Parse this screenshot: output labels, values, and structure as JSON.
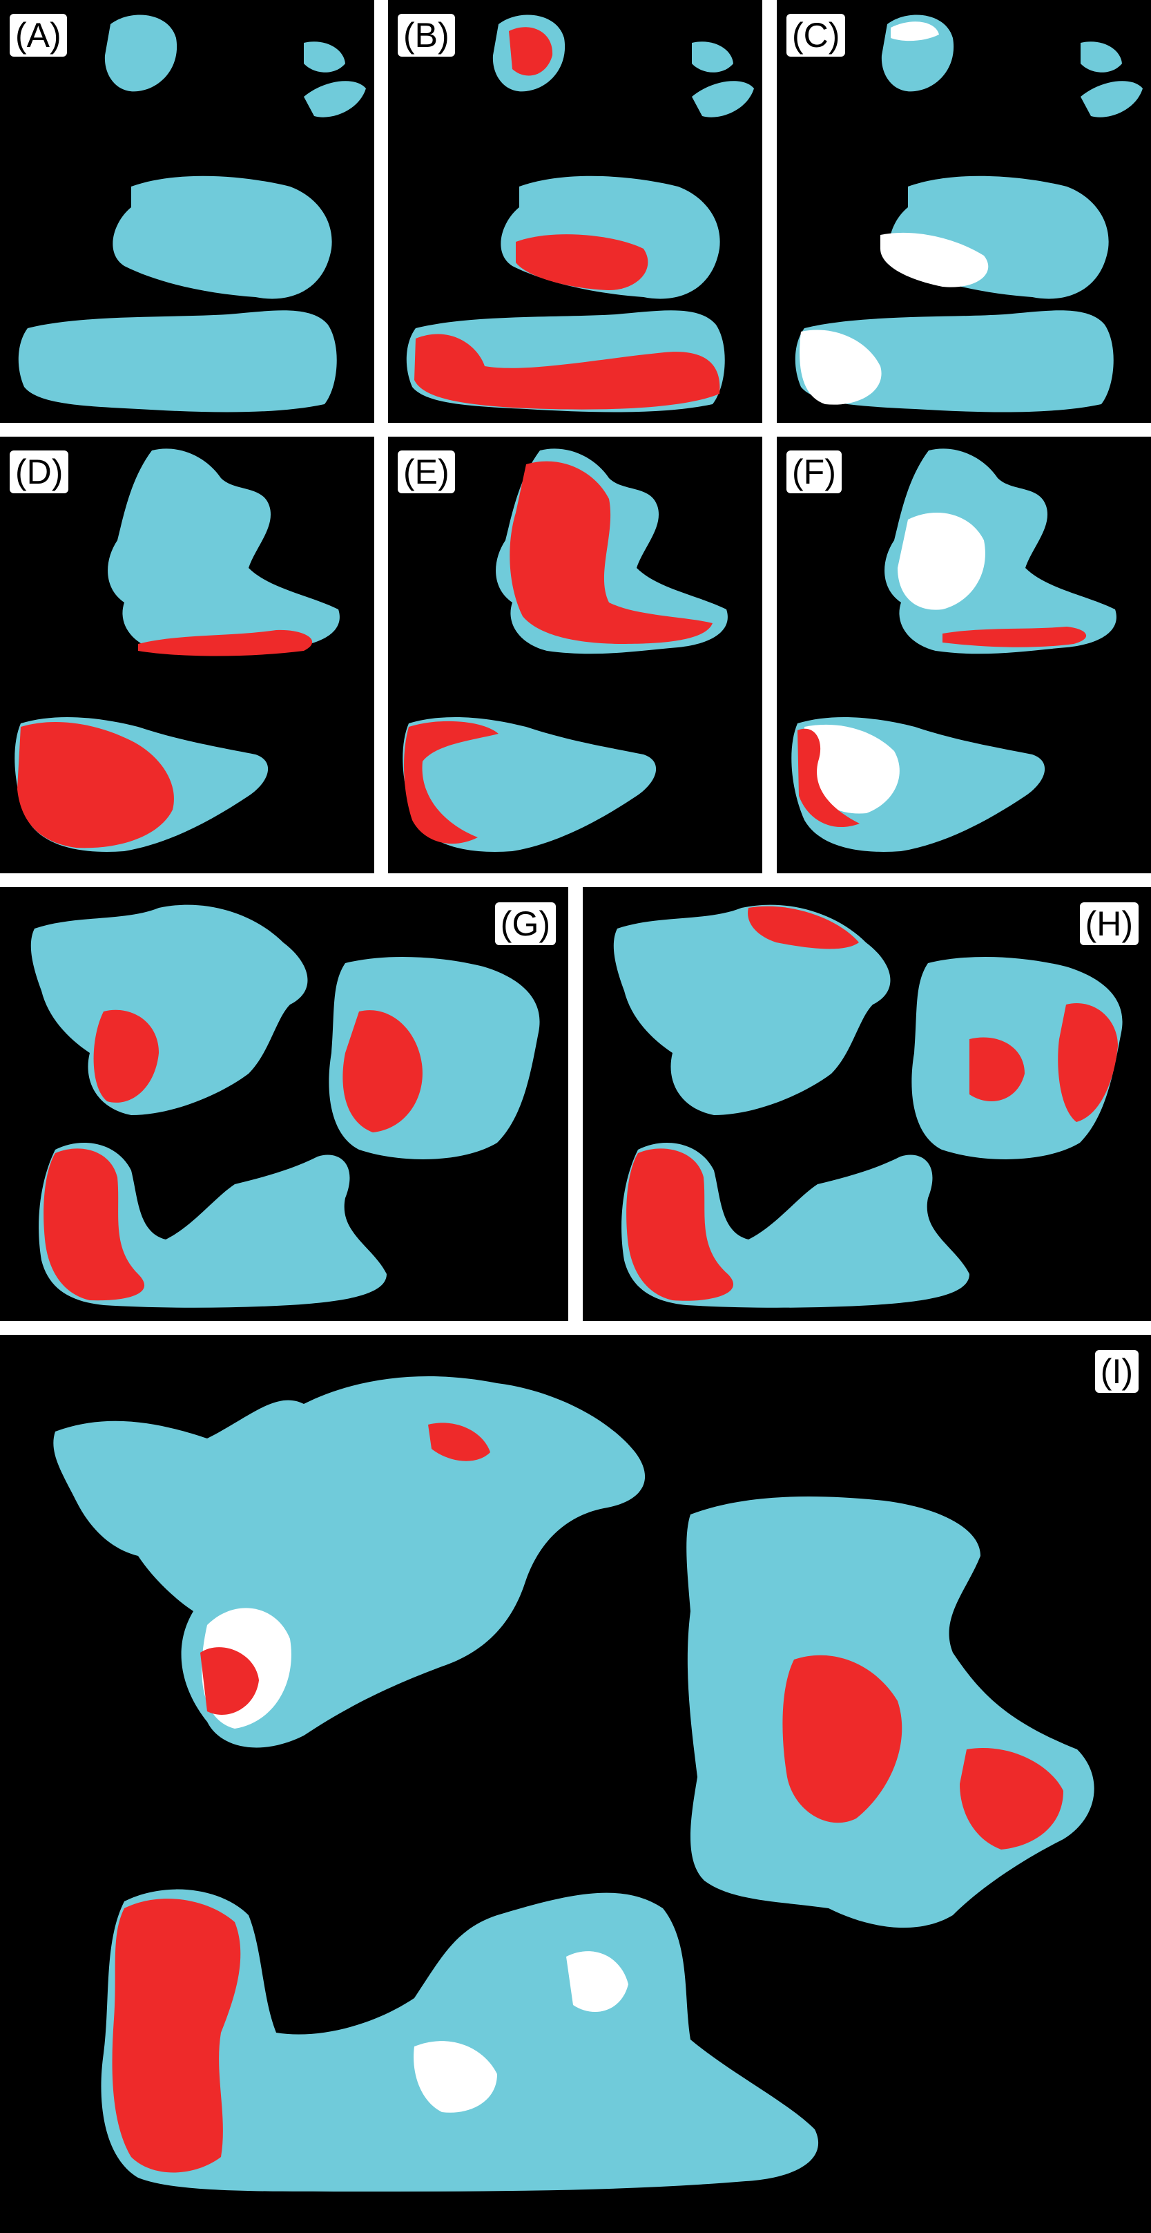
{
  "colors": {
    "background": "#000000",
    "tissue": "#70CBDA",
    "marker": "#EE2A2A",
    "overlap": "#FFFFFF"
  },
  "panels": [
    {
      "id": "A",
      "label": "(A)"
    },
    {
      "id": "B",
      "label": "(B)"
    },
    {
      "id": "C",
      "label": "(C)"
    },
    {
      "id": "D",
      "label": "(D)"
    },
    {
      "id": "E",
      "label": "(E)"
    },
    {
      "id": "F",
      "label": "(F)"
    },
    {
      "id": "G",
      "label": "(G)"
    },
    {
      "id": "H",
      "label": "(H)"
    },
    {
      "id": "I",
      "label": "(I)"
    }
  ]
}
